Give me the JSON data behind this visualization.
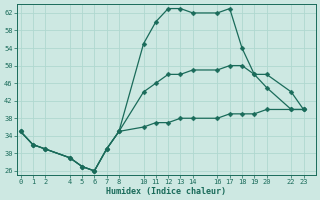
{
  "title": "",
  "xlabel": "Humidex (Indice chaleur)",
  "bg_color": "#cde8e2",
  "grid_color": "#b0d8d0",
  "line_color": "#1a6b5a",
  "ylim": [
    25,
    64
  ],
  "yticks": [
    26,
    30,
    34,
    38,
    42,
    46,
    50,
    54,
    58,
    62
  ],
  "xtick_positions": [
    0,
    1,
    2,
    4,
    5,
    6,
    7,
    8,
    10,
    11,
    12,
    13,
    14,
    16,
    17,
    18,
    19,
    20,
    22,
    23
  ],
  "xtick_labels": [
    "0",
    "1",
    "2",
    "4",
    "5",
    "6",
    "7",
    "8",
    "10",
    "11",
    "12",
    "13",
    "14",
    "16",
    "17",
    "18",
    "19",
    "20",
    "22",
    "23"
  ],
  "xlim": [
    -0.3,
    24.0
  ],
  "line1_x": [
    0,
    1,
    2,
    4,
    5,
    6,
    7,
    8,
    10,
    11,
    12,
    13,
    14,
    16,
    17,
    18,
    19,
    20,
    22,
    23
  ],
  "line1_y": [
    35,
    32,
    31,
    29,
    27,
    26,
    31,
    35,
    55,
    60,
    63,
    63,
    62,
    62,
    63,
    54,
    48,
    45,
    40,
    40
  ],
  "line2_x": [
    0,
    1,
    2,
    4,
    5,
    6,
    7,
    8,
    10,
    11,
    12,
    13,
    14,
    16,
    17,
    18,
    19,
    20,
    22,
    23
  ],
  "line2_y": [
    35,
    32,
    31,
    29,
    27,
    26,
    31,
    35,
    44,
    46,
    48,
    48,
    49,
    49,
    50,
    50,
    48,
    48,
    44,
    40
  ],
  "line3_x": [
    0,
    1,
    2,
    4,
    5,
    6,
    7,
    8,
    10,
    11,
    12,
    13,
    14,
    16,
    17,
    18,
    19,
    20,
    22,
    23
  ],
  "line3_y": [
    35,
    32,
    31,
    29,
    27,
    26,
    31,
    35,
    36,
    37,
    37,
    38,
    38,
    38,
    39,
    39,
    39,
    40,
    40,
    40
  ],
  "figsize": [
    3.2,
    2.0
  ],
  "dpi": 100,
  "lw": 0.9,
  "ms": 2.5
}
